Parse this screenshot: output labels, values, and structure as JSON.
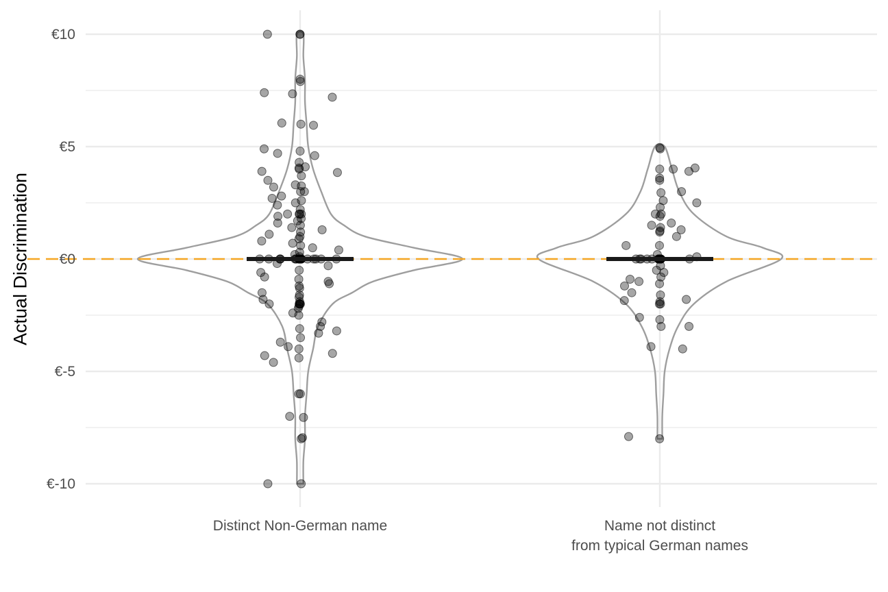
{
  "chart_data": {
    "type": "violin",
    "title": "",
    "xlabel": "",
    "ylabel": "Actual Discrimination",
    "ylim": [
      -11,
      11
    ],
    "yticks": [
      -10,
      -5,
      0,
      5,
      10
    ],
    "ytick_labels": [
      "€-10",
      "€-5",
      "€0",
      "€5",
      "€10"
    ],
    "reference_line": {
      "y": 0,
      "style": "dashed",
      "color": "#F5A623"
    },
    "grid": true,
    "colors": {
      "violin_outline": "#9e9e9e",
      "points": "#000000",
      "median_bar": "#1a1a1a",
      "grid": "#ebebeb"
    },
    "groups": [
      {
        "label_lines": [
          "Distinct Non-German name"
        ],
        "median": 0,
        "points": [
          10,
          10,
          10,
          8,
          7.4,
          7.2,
          7.9,
          7.35,
          6.05,
          6,
          5.95,
          4.9,
          4.8,
          4.7,
          4.6,
          4.3,
          4.1,
          4.05,
          4,
          3.9,
          3.85,
          3.7,
          3.5,
          3.3,
          3.25,
          3.2,
          3,
          3,
          2.8,
          2.7,
          2.6,
          2.5,
          2.4,
          2.2,
          2,
          2,
          2,
          2,
          1.9,
          1.8,
          1.7,
          1.6,
          1.5,
          1.4,
          1.3,
          1.2,
          1.1,
          1,
          0.9,
          0.8,
          0.7,
          0.6,
          0.5,
          0.4,
          0.3,
          0.2,
          0.1,
          0,
          0,
          0,
          0,
          0,
          0,
          0,
          0,
          0,
          0,
          0,
          0,
          0,
          0,
          0,
          0,
          0,
          0,
          0,
          0,
          0,
          0,
          0,
          0,
          0,
          0,
          0,
          0,
          -0.2,
          -0.3,
          -0.5,
          -0.6,
          -0.8,
          -0.9,
          -1,
          -1.1,
          -1.2,
          -1.3,
          -1.5,
          -1.6,
          -1.7,
          -1.8,
          -1.9,
          -2,
          -2,
          -2,
          -2,
          -2,
          -2.1,
          -2.2,
          -2.4,
          -2.5,
          -2.8,
          -3,
          -3.1,
          -3.2,
          -3.3,
          -3.5,
          -3.7,
          -3.9,
          -4,
          -4.2,
          -4.3,
          -4.4,
          -4.6,
          -6,
          -6,
          -7,
          -7.05,
          -8,
          -7.95,
          -10,
          -10
        ],
        "density": [
          [
            -10,
            0.02
          ],
          [
            -9,
            0.02
          ],
          [
            -8,
            0.03
          ],
          [
            -7,
            0.03
          ],
          [
            -6,
            0.04
          ],
          [
            -5,
            0.05
          ],
          [
            -4,
            0.08
          ],
          [
            -3,
            0.11
          ],
          [
            -2,
            0.2
          ],
          [
            -1.5,
            0.32
          ],
          [
            -1,
            0.45
          ],
          [
            -0.5,
            0.7
          ],
          [
            0,
            1
          ],
          [
            0.5,
            0.7
          ],
          [
            1,
            0.4
          ],
          [
            1.5,
            0.27
          ],
          [
            2,
            0.19
          ],
          [
            3,
            0.13
          ],
          [
            4,
            0.08
          ],
          [
            5,
            0.05
          ],
          [
            6,
            0.04
          ],
          [
            7,
            0.03
          ],
          [
            8,
            0.03
          ],
          [
            9,
            0.02
          ],
          [
            10,
            0.02
          ]
        ]
      },
      {
        "label_lines": [
          "Name not distinct",
          "from typical German names"
        ],
        "median": 0,
        "points": [
          4.9,
          4.95,
          4,
          4,
          4.05,
          3.9,
          3.6,
          3.5,
          3,
          2.95,
          2.6,
          2.5,
          2.3,
          2,
          2,
          1.9,
          1.6,
          1.5,
          1.4,
          1.3,
          1.25,
          1.2,
          1,
          0.6,
          0.6,
          0.2,
          0.1,
          0,
          0,
          0,
          0,
          0,
          0,
          0,
          0,
          0,
          0,
          0,
          0,
          0,
          0,
          0,
          0,
          0,
          0,
          0,
          0,
          0,
          -0.3,
          -0.5,
          -0.6,
          -0.8,
          -0.9,
          -1,
          -1.1,
          -1.2,
          -1.5,
          -1.6,
          -1.8,
          -1.85,
          -1.9,
          -2,
          -2,
          -2.7,
          -2.6,
          -3,
          -3,
          -3.9,
          -4,
          -8,
          -7.9
        ],
        "density": [
          [
            -8,
            0.02
          ],
          [
            -7,
            0.02
          ],
          [
            -6,
            0.03
          ],
          [
            -5,
            0.04
          ],
          [
            -4,
            0.08
          ],
          [
            -3,
            0.15
          ],
          [
            -2,
            0.28
          ],
          [
            -1,
            0.55
          ],
          [
            0,
            1
          ],
          [
            0.5,
            0.85
          ],
          [
            1,
            0.55
          ],
          [
            2,
            0.28
          ],
          [
            3,
            0.16
          ],
          [
            4,
            0.1
          ],
          [
            5,
            0.04
          ]
        ]
      }
    ]
  }
}
